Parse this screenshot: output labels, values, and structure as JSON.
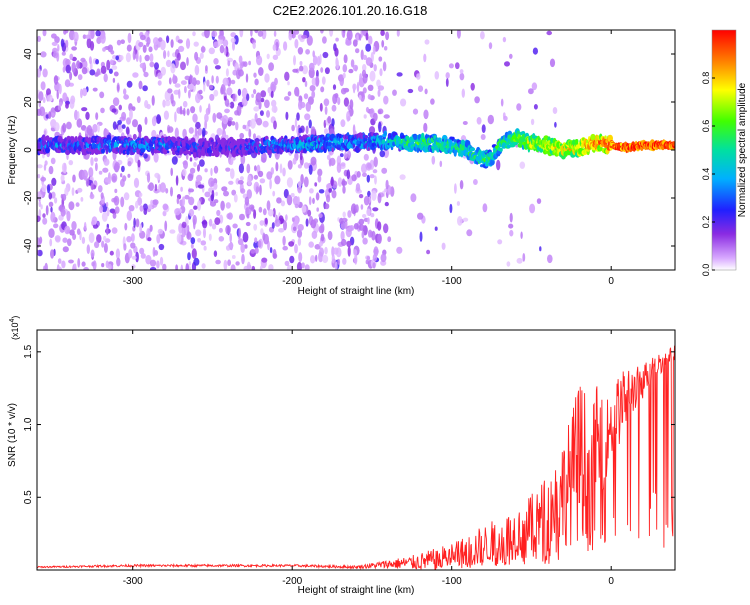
{
  "chart_data": [
    {
      "type": "heatmap",
      "title": "C2E2.2026.101.20.16.G18",
      "xlabel": "Height of straight line (km)",
      "ylabel": "Frequency (Hz)",
      "xlim": [
        -360,
        40
      ],
      "ylim": [
        -50,
        50
      ],
      "xticks": [
        -300,
        -200,
        -100,
        0
      ],
      "yticks": [
        -40,
        -20,
        0,
        20,
        40
      ],
      "colorbar": {
        "label": "Normalized spectral amplitude",
        "range": [
          0,
          1
        ],
        "ticks": [
          0.0,
          0.2,
          0.4,
          0.6,
          0.8
        ],
        "tick_labels": [
          "0.0",
          "0.2",
          "0.4",
          "0.6",
          "0.8"
        ],
        "colors": [
          "#ffffff",
          "#a040ff",
          "#3030ff",
          "#00c0ff",
          "#00e0a0",
          "#40ff00",
          "#ffff00",
          "#ff8000",
          "#ff0000"
        ]
      },
      "ridge": {
        "x": [
          -360,
          -340,
          -320,
          -300,
          -280,
          -260,
          -240,
          -220,
          -200,
          -180,
          -160,
          -140,
          -130,
          -120,
          -110,
          -100,
          -90,
          -80,
          -75,
          -70,
          -60,
          -50,
          -40,
          -30,
          -20,
          -10,
          0,
          10,
          20,
          30,
          40
        ],
        "freq": [
          2,
          2,
          2,
          2,
          2,
          1,
          1,
          2,
          2,
          3,
          3,
          4,
          3,
          3,
          3,
          2,
          0,
          -4,
          -3,
          2,
          5,
          3,
          2,
          0,
          1,
          3,
          2,
          1,
          2,
          2,
          2
        ],
        "amplitude": [
          0.3,
          0.3,
          0.3,
          0.35,
          0.3,
          0.25,
          0.2,
          0.3,
          0.35,
          0.4,
          0.35,
          0.45,
          0.5,
          0.55,
          0.5,
          0.5,
          0.5,
          0.55,
          0.5,
          0.55,
          0.6,
          0.7,
          0.7,
          0.75,
          0.8,
          0.85,
          0.9,
          0.95,
          0.95,
          0.95,
          0.95
        ]
      }
    },
    {
      "type": "line",
      "title": "",
      "xlabel": "Height of straight line (km)",
      "ylabel": "SNR (10 * v/v)",
      "multiplier_label": "(x10",
      "multiplier_exp": "4",
      "xlim": [
        -360,
        40
      ],
      "ylim": [
        0,
        1.65
      ],
      "xticks": [
        -300,
        -200,
        -100,
        0
      ],
      "yticks": [
        0.5,
        1.0,
        1.5
      ],
      "ytick_labels": [
        "0.5",
        "1.0",
        "1.5"
      ],
      "series": [
        {
          "name": "SNR",
          "color": "#ff2020",
          "x": [
            -360,
            -300,
            -240,
            -200,
            -160,
            -140,
            -125,
            -110,
            -100,
            -90,
            -80,
            -70,
            -60,
            -50,
            -40,
            -35,
            -30,
            -25,
            -20,
            -15,
            -12,
            -10,
            -5,
            0,
            5,
            10,
            15,
            20,
            25,
            30,
            35,
            40
          ],
          "y": [
            0.02,
            0.03,
            0.03,
            0.03,
            0.02,
            0.04,
            0.05,
            0.07,
            0.1,
            0.12,
            0.17,
            0.2,
            0.25,
            0.3,
            0.38,
            0.45,
            0.55,
            0.62,
            0.8,
            0.7,
            0.6,
            0.9,
            0.85,
            1.0,
            1.1,
            1.2,
            1.25,
            1.3,
            1.38,
            1.42,
            1.45,
            1.5
          ],
          "noise": [
            0.005,
            0.008,
            0.008,
            0.008,
            0.01,
            0.03,
            0.05,
            0.08,
            0.09,
            0.12,
            0.14,
            0.16,
            0.18,
            0.22,
            0.28,
            0.32,
            0.38,
            0.45,
            0.55,
            0.5,
            0.45,
            0.4,
            0.3,
            0.25,
            0.25,
            0.2,
            0.15,
            0.12,
            0.1,
            0.08,
            0.06,
            0.05
          ]
        }
      ]
    }
  ]
}
